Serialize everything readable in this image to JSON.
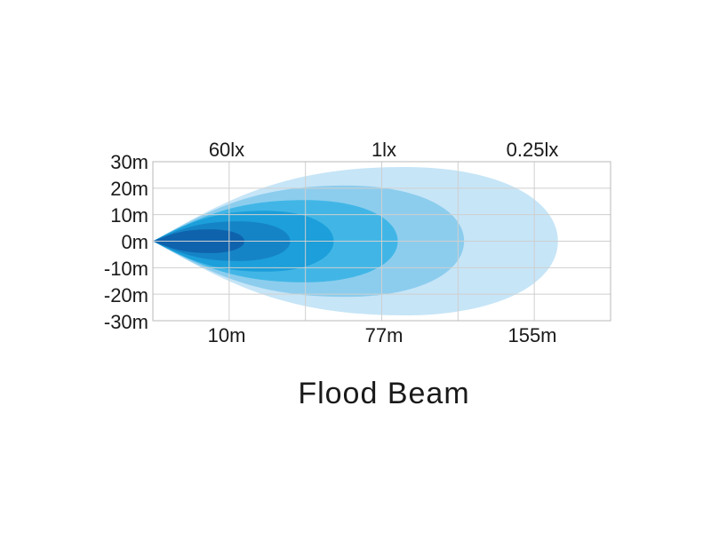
{
  "chart_data": {
    "type": "area",
    "title": "Flood Beam",
    "y_ticks": [
      "30m",
      "20m",
      "10m",
      "0m",
      "-10m",
      "-20m",
      "-30m"
    ],
    "top_labels": [
      "60lx",
      "1lx",
      "0.25lx"
    ],
    "bottom_labels": [
      "10m",
      "77m",
      "155m"
    ],
    "ylim": [
      -30,
      30
    ],
    "grid": true,
    "beam_layers": [
      {
        "extent_fraction": 0.885,
        "half_width_m": 28,
        "color": "#c6e5f7"
      },
      {
        "extent_fraction": 0.68,
        "half_width_m": 21,
        "color": "#8ccdee"
      },
      {
        "extent_fraction": 0.535,
        "half_width_m": 15.5,
        "color": "#41b6e6"
      },
      {
        "extent_fraction": 0.395,
        "half_width_m": 11.5,
        "color": "#1c9fda"
      },
      {
        "extent_fraction": 0.3,
        "half_width_m": 7.5,
        "color": "#1584c7"
      },
      {
        "extent_fraction": 0.2,
        "half_width_m": 4.5,
        "color": "#0f63ad"
      }
    ]
  }
}
